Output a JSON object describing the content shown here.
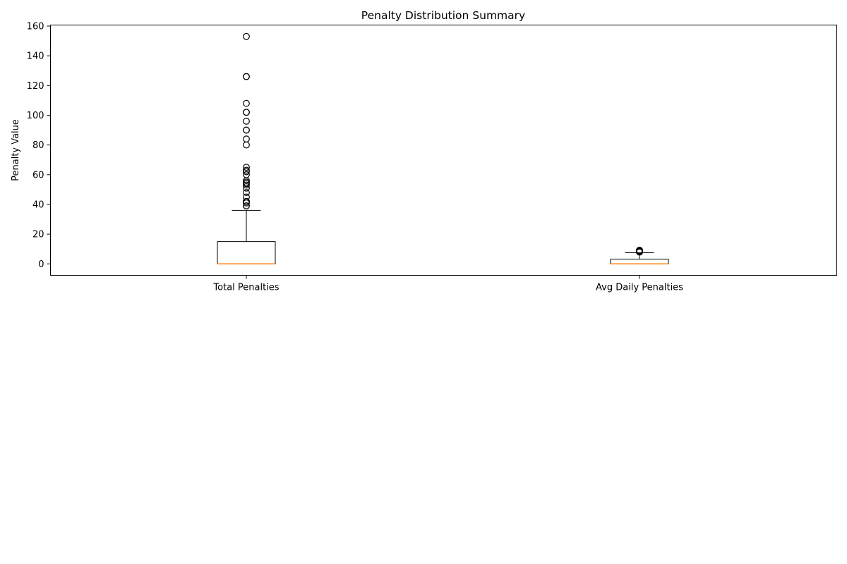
{
  "chart_data": {
    "type": "box",
    "title": "Penalty Distribution Summary",
    "xlabel": "",
    "ylabel": "Penalty Value",
    "ylim": [
      -7.7,
      160.7
    ],
    "y_ticks": [
      0,
      20,
      40,
      60,
      80,
      100,
      120,
      140,
      160
    ],
    "grid": false,
    "categories": [
      "Total Penalties",
      "Avg Daily Penalties"
    ],
    "boxes": [
      {
        "category": "Total Penalties",
        "whisker_low": 0,
        "q1": 0,
        "median": 0,
        "q3": 15,
        "whisker_high": 36,
        "outliers": [
          153,
          126,
          126,
          108,
          102,
          102,
          96,
          90,
          90,
          84,
          80,
          65,
          63,
          62,
          60,
          56,
          55,
          54,
          53,
          51,
          48,
          45,
          42,
          42,
          41,
          39,
          39
        ]
      },
      {
        "category": "Avg Daily Penalties",
        "whisker_low": 0,
        "q1": 0,
        "median": 0,
        "q3": 3.2,
        "whisker_high": 7.5,
        "outliers": [
          9.2,
          9.0,
          8.7,
          8.5,
          8.2,
          7.9
        ]
      }
    ],
    "colors": {
      "box": "#000000",
      "median": "#ff7f0e",
      "outlier_edge": "#000000",
      "outlier_fill": "none"
    }
  }
}
